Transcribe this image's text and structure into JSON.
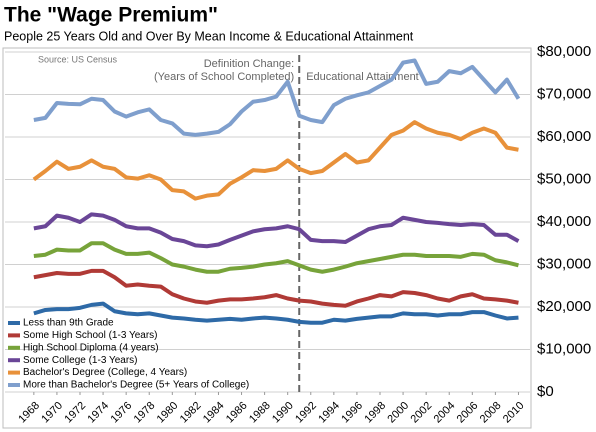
{
  "chart_data": {
    "type": "line",
    "title": "The \"Wage Premium\"",
    "subtitle": "People 25 Years Old and Over By Mean Income & Educational Attainment",
    "source": "Source: US Census",
    "annotation_left": [
      "Definition Change:",
      "(Years of School Completed)"
    ],
    "annotation_right": "Educational Attainment",
    "divider_x": 1991,
    "x": [
      1968,
      1969,
      1970,
      1971,
      1972,
      1973,
      1974,
      1975,
      1976,
      1977,
      1978,
      1979,
      1980,
      1981,
      1982,
      1983,
      1984,
      1985,
      1986,
      1987,
      1988,
      1989,
      1990,
      1991,
      1992,
      1993,
      1994,
      1995,
      1996,
      1997,
      1998,
      1999,
      2000,
      2001,
      2002,
      2003,
      2004,
      2005,
      2006,
      2007,
      2008,
      2009,
      2010
    ],
    "xlim": [
      1965.5,
      2011
    ],
    "xticks": [
      1968,
      1970,
      1972,
      1974,
      1976,
      1978,
      1980,
      1982,
      1984,
      1986,
      1988,
      1990,
      1992,
      1994,
      1996,
      1998,
      2000,
      2002,
      2004,
      2006,
      2008,
      2010
    ],
    "ylim": [
      0,
      80000
    ],
    "yticks": [
      {
        "value": 0,
        "label": "$0"
      },
      {
        "value": 10000,
        "label": "$10,000"
      },
      {
        "value": 20000,
        "label": "$20,000"
      },
      {
        "value": 30000,
        "label": "$30,000"
      },
      {
        "value": 40000,
        "label": "$40,000"
      },
      {
        "value": 50000,
        "label": "$50,000"
      },
      {
        "value": 60000,
        "label": "$60,000"
      },
      {
        "value": 70000,
        "label": "$70,000"
      },
      {
        "value": 80000,
        "label": "$80,000"
      }
    ],
    "grid": true,
    "legend": "lower-left",
    "series": [
      {
        "name": "Less than 9th Grade",
        "color": "#2e6aa7",
        "values": [
          18500,
          19300,
          19500,
          19500,
          19800,
          20500,
          20800,
          19000,
          18500,
          18300,
          18500,
          18000,
          17500,
          17300,
          17000,
          16800,
          17000,
          17200,
          17000,
          17300,
          17500,
          17300,
          17000,
          16500,
          16300,
          16300,
          17000,
          16800,
          17200,
          17500,
          17800,
          17800,
          18500,
          18300,
          18300,
          18000,
          18300,
          18300,
          18800,
          18800,
          18000,
          17300,
          17500
        ]
      },
      {
        "name": "Some High School (1-3 Years)",
        "color": "#b03a36",
        "values": [
          27000,
          27500,
          28000,
          27800,
          27800,
          28500,
          28500,
          27000,
          25000,
          25300,
          25000,
          24800,
          23000,
          22000,
          21300,
          21000,
          21500,
          21800,
          21800,
          22000,
          22300,
          22800,
          22000,
          21500,
          21300,
          20800,
          20500,
          20300,
          21300,
          22000,
          22800,
          22500,
          23500,
          23300,
          22800,
          22000,
          21500,
          22500,
          23000,
          22000,
          21800,
          21500,
          21000
        ]
      },
      {
        "name": "High School Diploma (4 years)",
        "color": "#77a33a",
        "values": [
          32000,
          32300,
          33500,
          33300,
          33300,
          35000,
          35000,
          33500,
          32500,
          32500,
          32800,
          31500,
          30000,
          29500,
          28800,
          28300,
          28300,
          29000,
          29200,
          29500,
          30000,
          30300,
          30800,
          29800,
          28800,
          28300,
          28800,
          29500,
          30300,
          30800,
          31300,
          31800,
          32300,
          32300,
          32000,
          32000,
          32000,
          31800,
          32500,
          32300,
          31000,
          30500,
          29800
        ]
      },
      {
        "name": "Some College (1-3 Years)",
        "color": "#6a4697",
        "values": [
          38500,
          39000,
          41500,
          41000,
          40000,
          41800,
          41500,
          40500,
          39000,
          38500,
          38500,
          37500,
          36000,
          35500,
          34500,
          34300,
          34700,
          35800,
          36800,
          37800,
          38300,
          38500,
          39000,
          38300,
          35800,
          35500,
          35500,
          35300,
          36800,
          38300,
          39000,
          39300,
          41000,
          40500,
          40000,
          39800,
          39500,
          39300,
          39500,
          39300,
          37000,
          37000,
          35500
        ]
      },
      {
        "name": "Bachelor's Degree (College, 4 Years)",
        "color": "#e8913a",
        "values": [
          50000,
          52000,
          54200,
          52500,
          53000,
          54500,
          53000,
          52500,
          50500,
          50200,
          51000,
          50000,
          47500,
          47200,
          45500,
          46200,
          46500,
          49000,
          50500,
          52200,
          52000,
          52500,
          54500,
          52500,
          51500,
          52000,
          54000,
          56000,
          54000,
          54500,
          57500,
          60500,
          61500,
          63500,
          62000,
          61000,
          60500,
          59500,
          61000,
          62000,
          61000,
          57500,
          57000
        ]
      },
      {
        "name": "More than Bachelor's Degree (5+ Years of College)",
        "color": "#7f9fcd",
        "values": [
          64000,
          64500,
          68000,
          67800,
          67700,
          69000,
          68700,
          66000,
          64800,
          65800,
          66500,
          64000,
          63200,
          60800,
          60500,
          60800,
          61200,
          63000,
          66000,
          68300,
          68700,
          69500,
          73000,
          65000,
          64000,
          63500,
          67500,
          69000,
          69800,
          70500,
          72000,
          73500,
          77500,
          78000,
          72500,
          73000,
          75500,
          75000,
          76500,
          73500,
          70500,
          73500,
          69000
        ]
      }
    ]
  }
}
